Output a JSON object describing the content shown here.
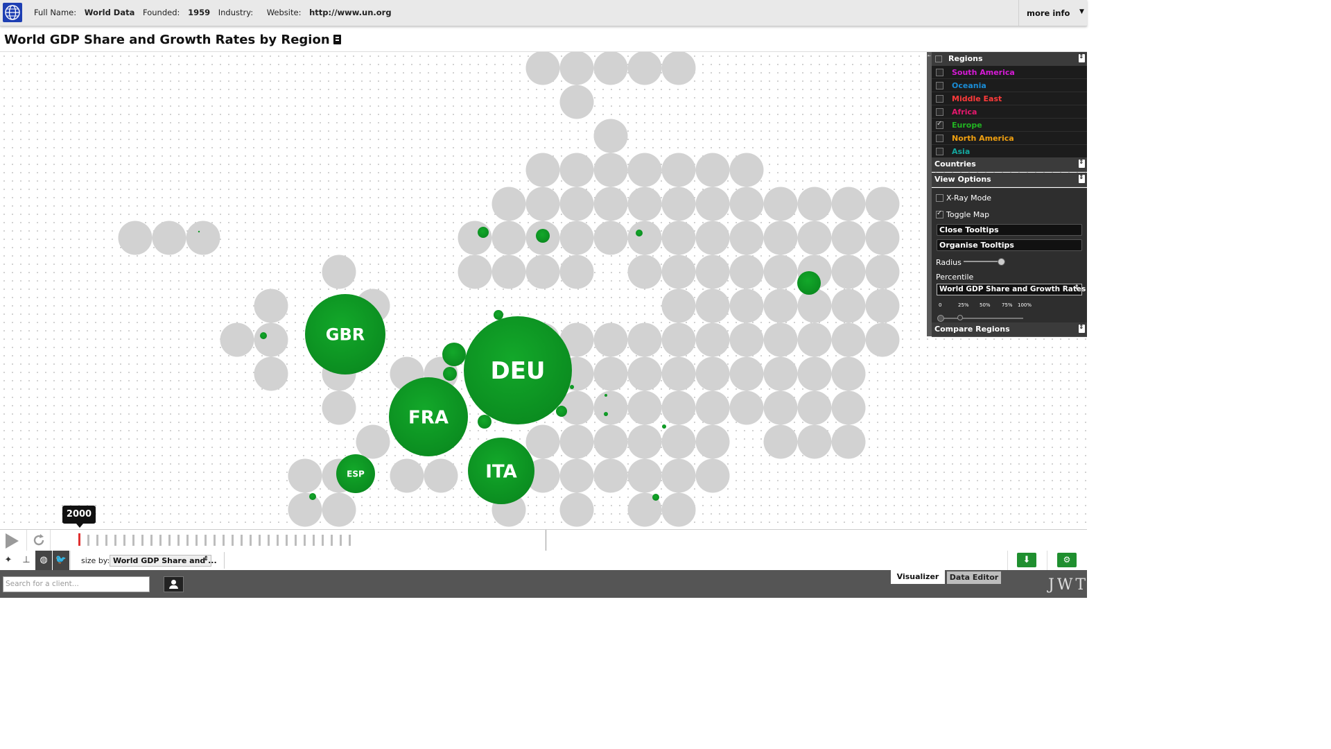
{
  "header": {
    "full_name_label": "Full Name:",
    "full_name": "World Data",
    "founded_label": "Founded:",
    "founded": "1959",
    "industry_label": "Industry:",
    "website_label": "Website:",
    "website": "http://www.un.org",
    "more_info": "more info"
  },
  "title": "World GDP Share and Growth Rates by Region",
  "map": {
    "grid_fill": "#d2d2d2",
    "bubble_color": "#0f9c26",
    "labeled_bubbles": [
      {
        "code": "GBR"
      },
      {
        "code": "DEU"
      },
      {
        "code": "FRA"
      },
      {
        "code": "ITA"
      },
      {
        "code": "ESP"
      }
    ]
  },
  "panel": {
    "regions_title": "Regions",
    "regions": [
      {
        "name": "South America",
        "color": "#d61ad6",
        "checked": false
      },
      {
        "name": "Oceania",
        "color": "#1a8cd6",
        "checked": false
      },
      {
        "name": "Middle East",
        "color": "#ff3a3a",
        "checked": false
      },
      {
        "name": "Africa",
        "color": "#e6186e",
        "checked": false
      },
      {
        "name": "Europe",
        "color": "#22b422",
        "checked": true
      },
      {
        "name": "North America",
        "color": "#f0a010",
        "checked": false
      },
      {
        "name": "Asia",
        "color": "#14a8a0",
        "checked": false
      }
    ],
    "countries_title": "Countries",
    "view_options_title": "View Options",
    "xray_label": "X-Ray Mode",
    "toggle_map_label": "Toggle Map",
    "close_tooltips": "Close Tooltips",
    "organise_tooltips": "Organise Tooltips",
    "radius_label": "Radius",
    "percentile_label": "Percentile",
    "percentile_select": "World GDP Share and Growth Rates",
    "percentile_ticks": [
      "0",
      "25%",
      "50%",
      "75%",
      "100%"
    ],
    "compare_title": "Compare Regions"
  },
  "timeline": {
    "current_year": "2000"
  },
  "toolbar": {
    "size_by_label": "size by:",
    "size_by_value": "World GDP Share and ..."
  },
  "bottom": {
    "search_placeholder": "Search for a client...",
    "tab_visualizer": "Visualizer",
    "tab_data_editor": "Data Editor",
    "brand": "JWT"
  }
}
